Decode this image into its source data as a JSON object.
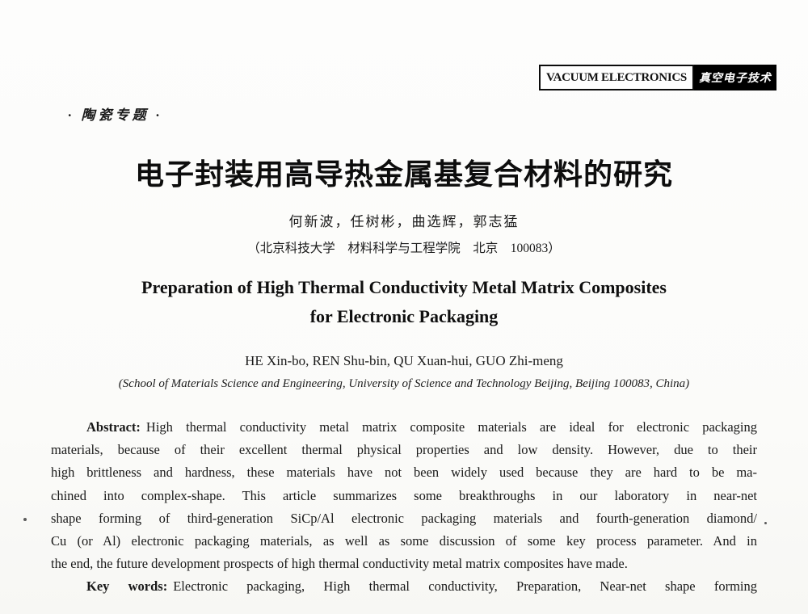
{
  "journal_badge": {
    "en": "VACUUM ELECTRONICS",
    "cn": "真空电子技术"
  },
  "column_label": "· 陶瓷专题 ·",
  "title_cn": "电子封装用高导热金属基复合材料的研究",
  "authors_cn": "何新波，任树彬，曲选辉，郭志猛",
  "affiliation_cn": "（北京科技大学　材料科学与工程学院　北京　100083）",
  "title_en": {
    "line1": "Preparation of High Thermal Conductivity Metal Matrix Composites",
    "line2": "for Electronic Packaging"
  },
  "authors_en": "HE Xin-bo, REN Shu-bin, QU Xuan-hui, GUO Zhi-meng",
  "affiliation_en": "(School of Materials Science and Engineering, University of Science and Technology Beijing, Beijing 100083, China)",
  "abstract": {
    "label": "Abstract:",
    "lines": [
      {
        "text": "High thermal conductivity metal matrix composite materials are ideal for electronic packaging",
        "lead": true,
        "indent": true,
        "justify": true
      },
      {
        "text": "materials, because of their excellent thermal physical properties and low density. However, due to their",
        "justify": true
      },
      {
        "text": "high brittleness and hardness, these materials have not been widely used because they are hard to be ma-",
        "justify": true
      },
      {
        "text": "chined into complex-shape. This article summarizes some breakthroughs in our laboratory in near-net",
        "justify": true
      },
      {
        "text": "shape forming of third-generation SiCp/Al electronic packaging materials and fourth-generation diamond/",
        "justify": true
      },
      {
        "text": "Cu (or Al) electronic packaging materials, as well as some discussion of some key process parameter. And in",
        "justify": true
      },
      {
        "text": "the end, the future development prospects of high thermal conductivity metal matrix composites have made.",
        "justify": false
      }
    ]
  },
  "keywords": {
    "label": "Key words:",
    "text": "Electronic packaging, High thermal conductivity, Preparation, Near-net shape forming",
    "indent": true,
    "justify": true
  }
}
